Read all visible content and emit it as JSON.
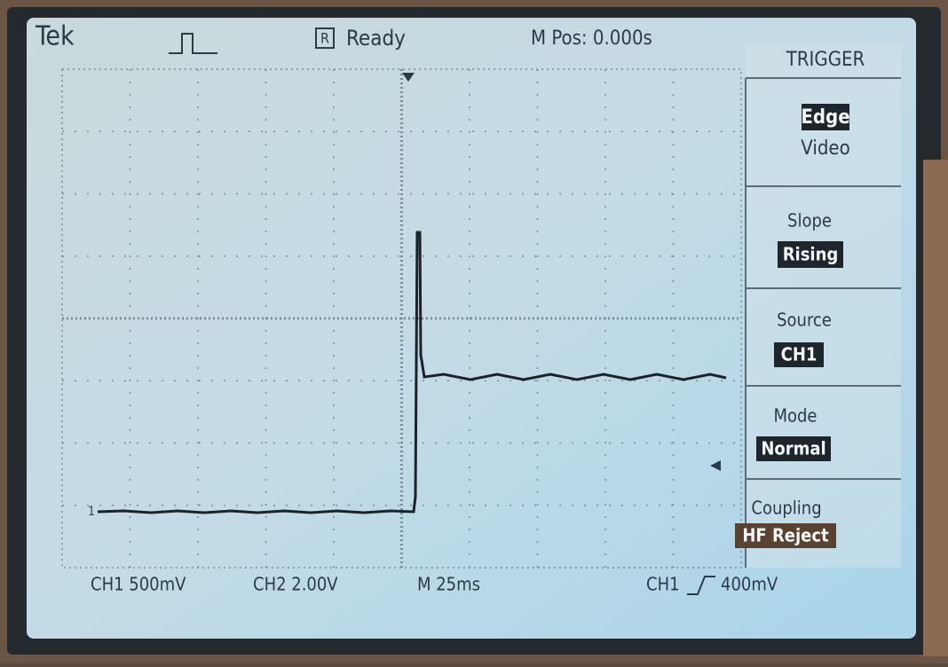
{
  "status_bar": {
    "brand": "Tek",
    "run_indicator": "R",
    "state": "Ready",
    "position": "M Pos: 0.000s"
  },
  "menu": {
    "title": "TRIGGER",
    "items": [
      {
        "selected": "Edge",
        "other": "Video"
      },
      {
        "label": "Slope",
        "selected": "Rising"
      },
      {
        "label": "Source",
        "selected": "CH1"
      },
      {
        "label": "Mode",
        "selected": "Normal"
      },
      {
        "label": "Coupling",
        "selected": "HF Reject"
      }
    ]
  },
  "waveform": {
    "channel_marker": "1"
  },
  "readout": {
    "ch1": "CH1 500mV",
    "ch2": "CH2 2.00V",
    "timebase": "M 25ms",
    "trigger_source": "CH1",
    "trigger_level": "400mV"
  }
}
